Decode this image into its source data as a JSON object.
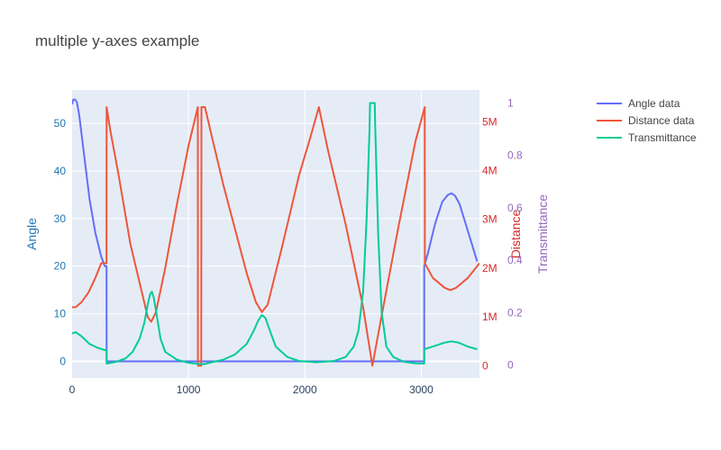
{
  "chart_data": {
    "type": "line",
    "title": "multiple y-axes example",
    "xlabel": "",
    "xlim": [
      0,
      3500
    ],
    "x_ticks": [
      0,
      1000,
      2000,
      3000
    ],
    "grid": true,
    "legend_placement": "top-right",
    "axes": [
      {
        "id": "y1",
        "label": "Angle",
        "side": "left",
        "color": "#1f77b4",
        "ylim": [
          -3.5,
          57
        ],
        "ticks": [
          0,
          10,
          20,
          30,
          40,
          50
        ],
        "tick_labels": [
          "0",
          "10",
          "20",
          "30",
          "40",
          "50"
        ]
      },
      {
        "id": "y2",
        "label": "Distance",
        "side": "right",
        "color": "#d62728",
        "ylim": [
          -250000,
          5650000
        ],
        "ticks": [
          0,
          1000000,
          2000000,
          3000000,
          4000000,
          5000000
        ],
        "tick_labels": [
          "0",
          "1M",
          "2M",
          "3M",
          "4M",
          "5M"
        ]
      },
      {
        "id": "y3",
        "label": "Transmittance",
        "side": "right",
        "color": "#9467bd",
        "ylim": [
          -0.05,
          1.05
        ],
        "ticks": [
          0,
          0.2,
          0.4,
          0.6,
          0.8,
          1
        ],
        "tick_labels": [
          "0",
          "0.2",
          "0.4",
          "0.6",
          "0.8",
          "1"
        ]
      }
    ],
    "series": [
      {
        "name": "Angle data",
        "axis": "y1",
        "color": "#636efa",
        "x": [
          0,
          10,
          25,
          40,
          60,
          100,
          150,
          200,
          250,
          280,
          296,
          296.5,
          1000,
          2000,
          3025,
          3025.5,
          3060,
          3120,
          3180,
          3230,
          3260,
          3290,
          3330,
          3380,
          3430,
          3480
        ],
        "y": [
          54,
          55,
          55,
          54.5,
          52,
          44,
          34,
          27,
          22,
          20,
          20,
          0,
          0,
          0,
          0,
          20,
          23,
          29,
          33.5,
          35,
          35.3,
          34.8,
          33,
          29,
          25,
          21
        ]
      },
      {
        "name": "Distance data",
        "axis": "y2",
        "color": "#ef553b",
        "x": [
          0,
          30,
          80,
          140,
          200,
          250,
          296,
          296.5,
          330,
          400,
          500,
          600,
          650,
          680,
          720,
          800,
          900,
          1000,
          1080,
          1081,
          1110,
          1111,
          1140,
          1141,
          1200,
          1300,
          1400,
          1500,
          1580,
          1630,
          1680,
          1800,
          1950,
          2050,
          2120,
          2200,
          2350,
          2500,
          2580,
          2650,
          2800,
          2950,
          3030,
          3031,
          3100,
          3200,
          3250,
          3300,
          3400,
          3500
        ],
        "y": [
          1200000,
          1200000,
          1300000,
          1500000,
          1800000,
          2100000,
          2100000,
          5300000,
          4800000,
          3900000,
          2500000,
          1500000,
          1000000,
          900000,
          1100000,
          2000000,
          3300000,
          4500000,
          5300000,
          0,
          0,
          5300000,
          5300000,
          5300000,
          4700000,
          3700000,
          2800000,
          1900000,
          1300000,
          1100000,
          1250000,
          2400000,
          3900000,
          4700000,
          5300000,
          4400000,
          2900000,
          1200000,
          0,
          900000,
          2800000,
          4600000,
          5300000,
          2100000,
          1800000,
          1600000,
          1550000,
          1600000,
          1800000,
          2100000
        ]
      },
      {
        "name": "Transmittance",
        "axis": "y3",
        "color": "#00cc96",
        "x": [
          0,
          30,
          80,
          150,
          220,
          296,
          296.5,
          380,
          460,
          520,
          580,
          620,
          650,
          670,
          685,
          700,
          720,
          760,
          800,
          900,
          1000,
          1080,
          1130,
          1131,
          1200,
          1300,
          1400,
          1500,
          1560,
          1600,
          1630,
          1660,
          1700,
          1750,
          1850,
          1950,
          2100,
          2250,
          2350,
          2420,
          2460,
          2500,
          2530,
          2555,
          2560,
          2600,
          2605,
          2630,
          2660,
          2700,
          2760,
          2850,
          2950,
          3025,
          3025.5,
          3100,
          3200,
          3260,
          3320,
          3400,
          3480
        ],
        "y": [
          0.12,
          0.125,
          0.11,
          0.08,
          0.065,
          0.055,
          0.005,
          0.012,
          0.025,
          0.05,
          0.1,
          0.16,
          0.23,
          0.27,
          0.28,
          0.26,
          0.21,
          0.1,
          0.05,
          0.02,
          0.008,
          0.004,
          0.003,
          0.003,
          0.01,
          0.02,
          0.04,
          0.08,
          0.13,
          0.17,
          0.19,
          0.18,
          0.13,
          0.07,
          0.03,
          0.015,
          0.01,
          0.015,
          0.03,
          0.07,
          0.13,
          0.28,
          0.55,
          0.9,
          1,
          1,
          0.9,
          0.5,
          0.2,
          0.07,
          0.03,
          0.012,
          0.006,
          0.005,
          0.06,
          0.07,
          0.085,
          0.09,
          0.085,
          0.07,
          0.06
        ]
      }
    ]
  }
}
